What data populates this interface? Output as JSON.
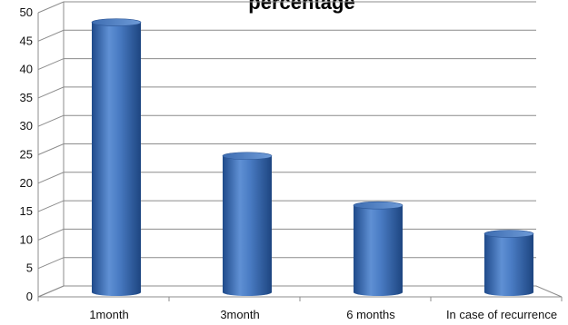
{
  "chart_data": {
    "type": "bar",
    "title": "percentage",
    "categories": [
      "1month",
      "3month",
      "6 months",
      "In case of recurrence"
    ],
    "values": [
      47.5,
      24,
      15.3,
      10.3
    ],
    "ylim": [
      0,
      50
    ],
    "yticks": [
      0,
      5,
      10,
      15,
      20,
      25,
      30,
      35,
      40,
      45,
      50
    ],
    "grid": true,
    "legend": "none",
    "bar_color": "#3d6fb5",
    "three_d": true
  }
}
